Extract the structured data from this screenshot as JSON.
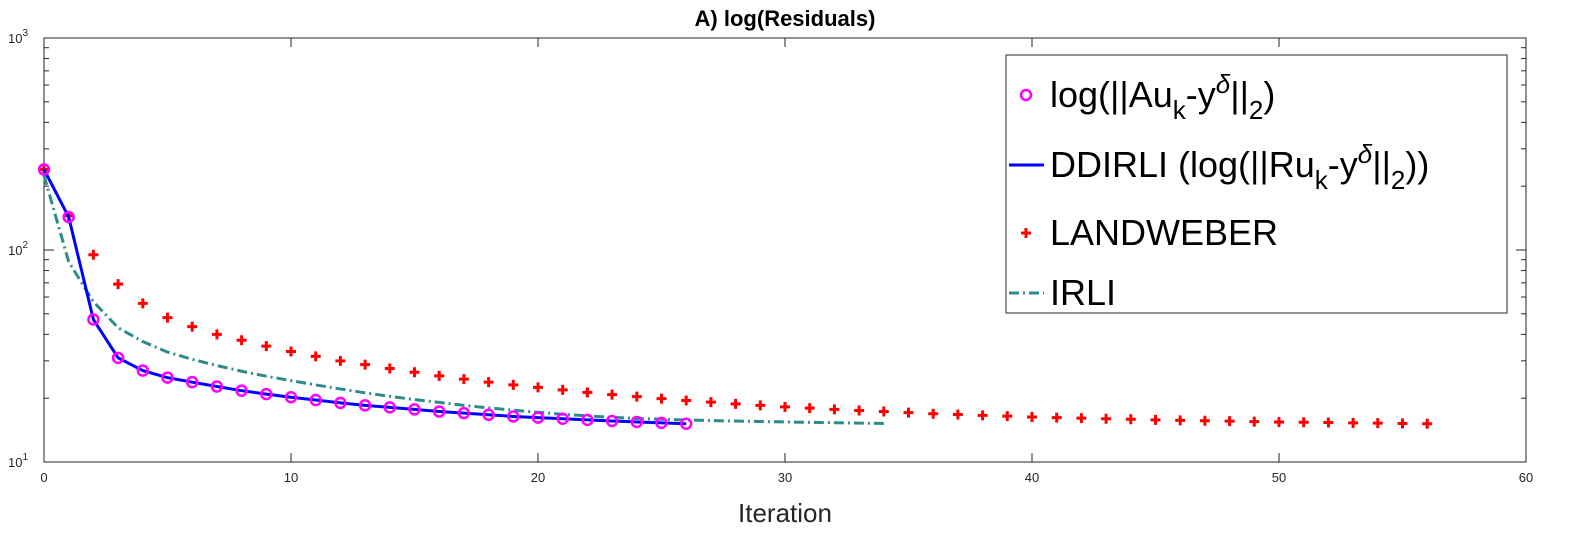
{
  "chart_data": {
    "type": "line",
    "title": "A) log(Residuals)",
    "xlabel": "Iteration",
    "ylabel": "",
    "yscale": "log",
    "xlim": [
      0,
      60
    ],
    "ylim": [
      10,
      1000
    ],
    "xticks": [
      0,
      10,
      20,
      30,
      40,
      50,
      60
    ],
    "xtick_labels": [
      "0",
      "10",
      "20",
      "30",
      "40",
      "50",
      "60"
    ],
    "yticks": [
      10,
      100,
      1000
    ],
    "ytick_labels": [
      {
        "base": "10",
        "exp": "1"
      },
      {
        "base": "10",
        "exp": "2"
      },
      {
        "base": "10",
        "exp": "3"
      }
    ],
    "legend_position": "top-right",
    "series": [
      {
        "name": "log(||Au_k-y^δ||_2)",
        "style": "markers-circle",
        "color": "#ff00ff",
        "x": [
          0,
          1,
          2,
          3,
          4,
          5,
          6,
          7,
          8,
          9,
          10,
          11,
          12,
          13,
          14,
          15,
          16,
          17,
          18,
          19,
          20,
          21,
          22,
          23,
          24,
          25,
          26
        ],
        "values": [
          240,
          143,
          47,
          31,
          27,
          25,
          23.8,
          22.7,
          21.7,
          20.9,
          20.2,
          19.6,
          19.0,
          18.5,
          18.1,
          17.7,
          17.3,
          17.0,
          16.7,
          16.4,
          16.2,
          16.0,
          15.8,
          15.6,
          15.45,
          15.3,
          15.15
        ]
      },
      {
        "name": "DDIRLI (log(||Ru_k-y^δ||_2))",
        "style": "line-solid",
        "color": "#0000ff",
        "x": [
          0,
          1,
          2,
          3,
          4,
          5,
          6,
          7,
          8,
          9,
          10,
          11,
          12,
          13,
          14,
          15,
          16,
          17,
          18,
          19,
          20,
          21,
          22,
          23,
          24,
          25,
          26
        ],
        "values": [
          240,
          143,
          47,
          31,
          27,
          25,
          23.8,
          22.7,
          21.7,
          20.9,
          20.2,
          19.6,
          19.0,
          18.5,
          18.1,
          17.7,
          17.3,
          17.0,
          16.7,
          16.4,
          16.2,
          16.0,
          15.8,
          15.6,
          15.45,
          15.3,
          15.15
        ]
      },
      {
        "name": "LANDWEBER",
        "style": "markers-plus",
        "color": "#ff0000",
        "x": [
          0,
          1,
          2,
          3,
          4,
          5,
          6,
          7,
          8,
          9,
          10,
          11,
          12,
          13,
          14,
          15,
          16,
          17,
          18,
          19,
          20,
          21,
          22,
          23,
          24,
          25,
          26,
          27,
          28,
          29,
          30,
          31,
          32,
          33,
          34,
          35,
          36,
          37,
          38,
          39,
          40,
          41,
          42,
          43,
          44,
          45,
          46,
          47,
          48,
          49,
          50,
          51,
          52,
          53,
          54,
          55,
          56
        ],
        "values": [
          240,
          145,
          95,
          69,
          56,
          48,
          43.5,
          40,
          37.5,
          35.2,
          33.2,
          31.5,
          30,
          28.8,
          27.6,
          26.5,
          25.5,
          24.6,
          23.8,
          23.1,
          22.5,
          21.9,
          21.3,
          20.8,
          20.35,
          19.9,
          19.5,
          19.15,
          18.8,
          18.5,
          18.2,
          17.95,
          17.7,
          17.5,
          17.3,
          17.1,
          16.9,
          16.75,
          16.6,
          16.45,
          16.3,
          16.2,
          16.1,
          16.0,
          15.9,
          15.8,
          15.72,
          15.65,
          15.58,
          15.5,
          15.45,
          15.4,
          15.35,
          15.3,
          15.25,
          15.2,
          15.15
        ]
      },
      {
        "name": "IRLI",
        "style": "line-dashdot",
        "color": "#2e8b8b",
        "x": [
          0,
          1,
          2,
          3,
          4,
          5,
          6,
          7,
          8,
          9,
          10,
          11,
          12,
          13,
          14,
          15,
          16,
          17,
          18,
          19,
          20,
          21,
          22,
          23,
          24,
          25,
          26,
          27,
          28,
          29,
          30,
          31,
          32,
          33,
          34
        ],
        "values": [
          225,
          88,
          57,
          43,
          37,
          33,
          30.5,
          28.5,
          26.8,
          25.4,
          24.2,
          23.1,
          22.1,
          21.2,
          20.4,
          19.7,
          19.1,
          18.5,
          18.0,
          17.55,
          17.15,
          16.8,
          16.5,
          16.25,
          16.05,
          15.9,
          15.78,
          15.68,
          15.6,
          15.52,
          15.45,
          15.38,
          15.32,
          15.26,
          15.2
        ]
      }
    ]
  }
}
